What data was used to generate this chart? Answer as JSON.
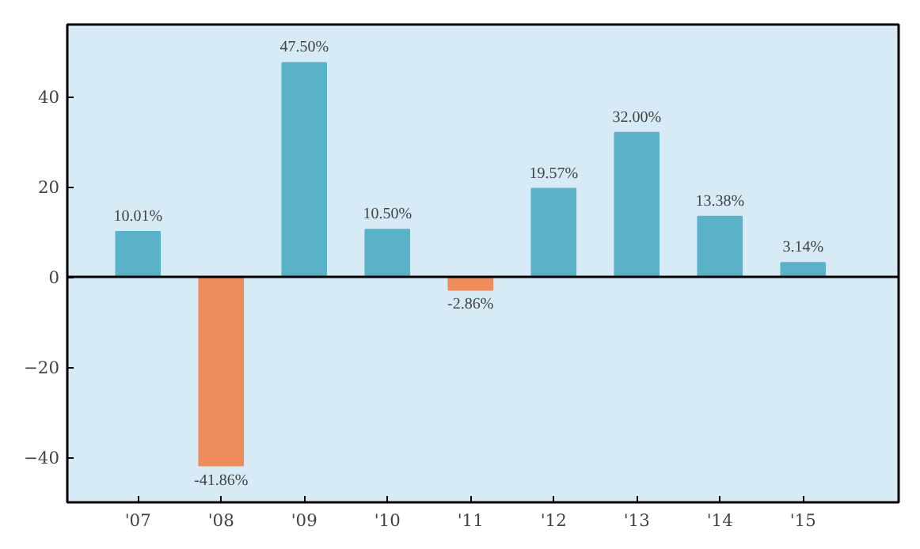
{
  "chart_data": {
    "type": "bar",
    "categories": [
      "'07",
      "'08",
      "'09",
      "'10",
      "'11",
      "'12",
      "'13",
      "'14",
      "'15"
    ],
    "values": [
      10.01,
      -41.86,
      47.5,
      10.5,
      -2.86,
      19.57,
      32.0,
      13.38,
      3.14
    ],
    "colors": [
      "#5ab2c9",
      "#ef8c5c",
      "#5ab2c9",
      "#5ab2c9",
      "#ef8c5c",
      "#5ab2c9",
      "#5ab2c9",
      "#5ab2c9",
      "#5ab2c9"
    ],
    "value_labels": [
      "10.01%",
      "-41.86%",
      "47.50%",
      "10.50%",
      "-2.86%",
      "19.57%",
      "32.00%",
      "13.38%",
      "3.14%"
    ],
    "ylim": [
      -50,
      56
    ],
    "yticks": [
      {
        "value": -40,
        "label": "−40"
      },
      {
        "value": -20,
        "label": "−20"
      },
      0,
      20,
      40
    ],
    "ref_lines": [
      {
        "axis": "y",
        "value": 0,
        "color": "#000000"
      }
    ],
    "grid": false
  }
}
